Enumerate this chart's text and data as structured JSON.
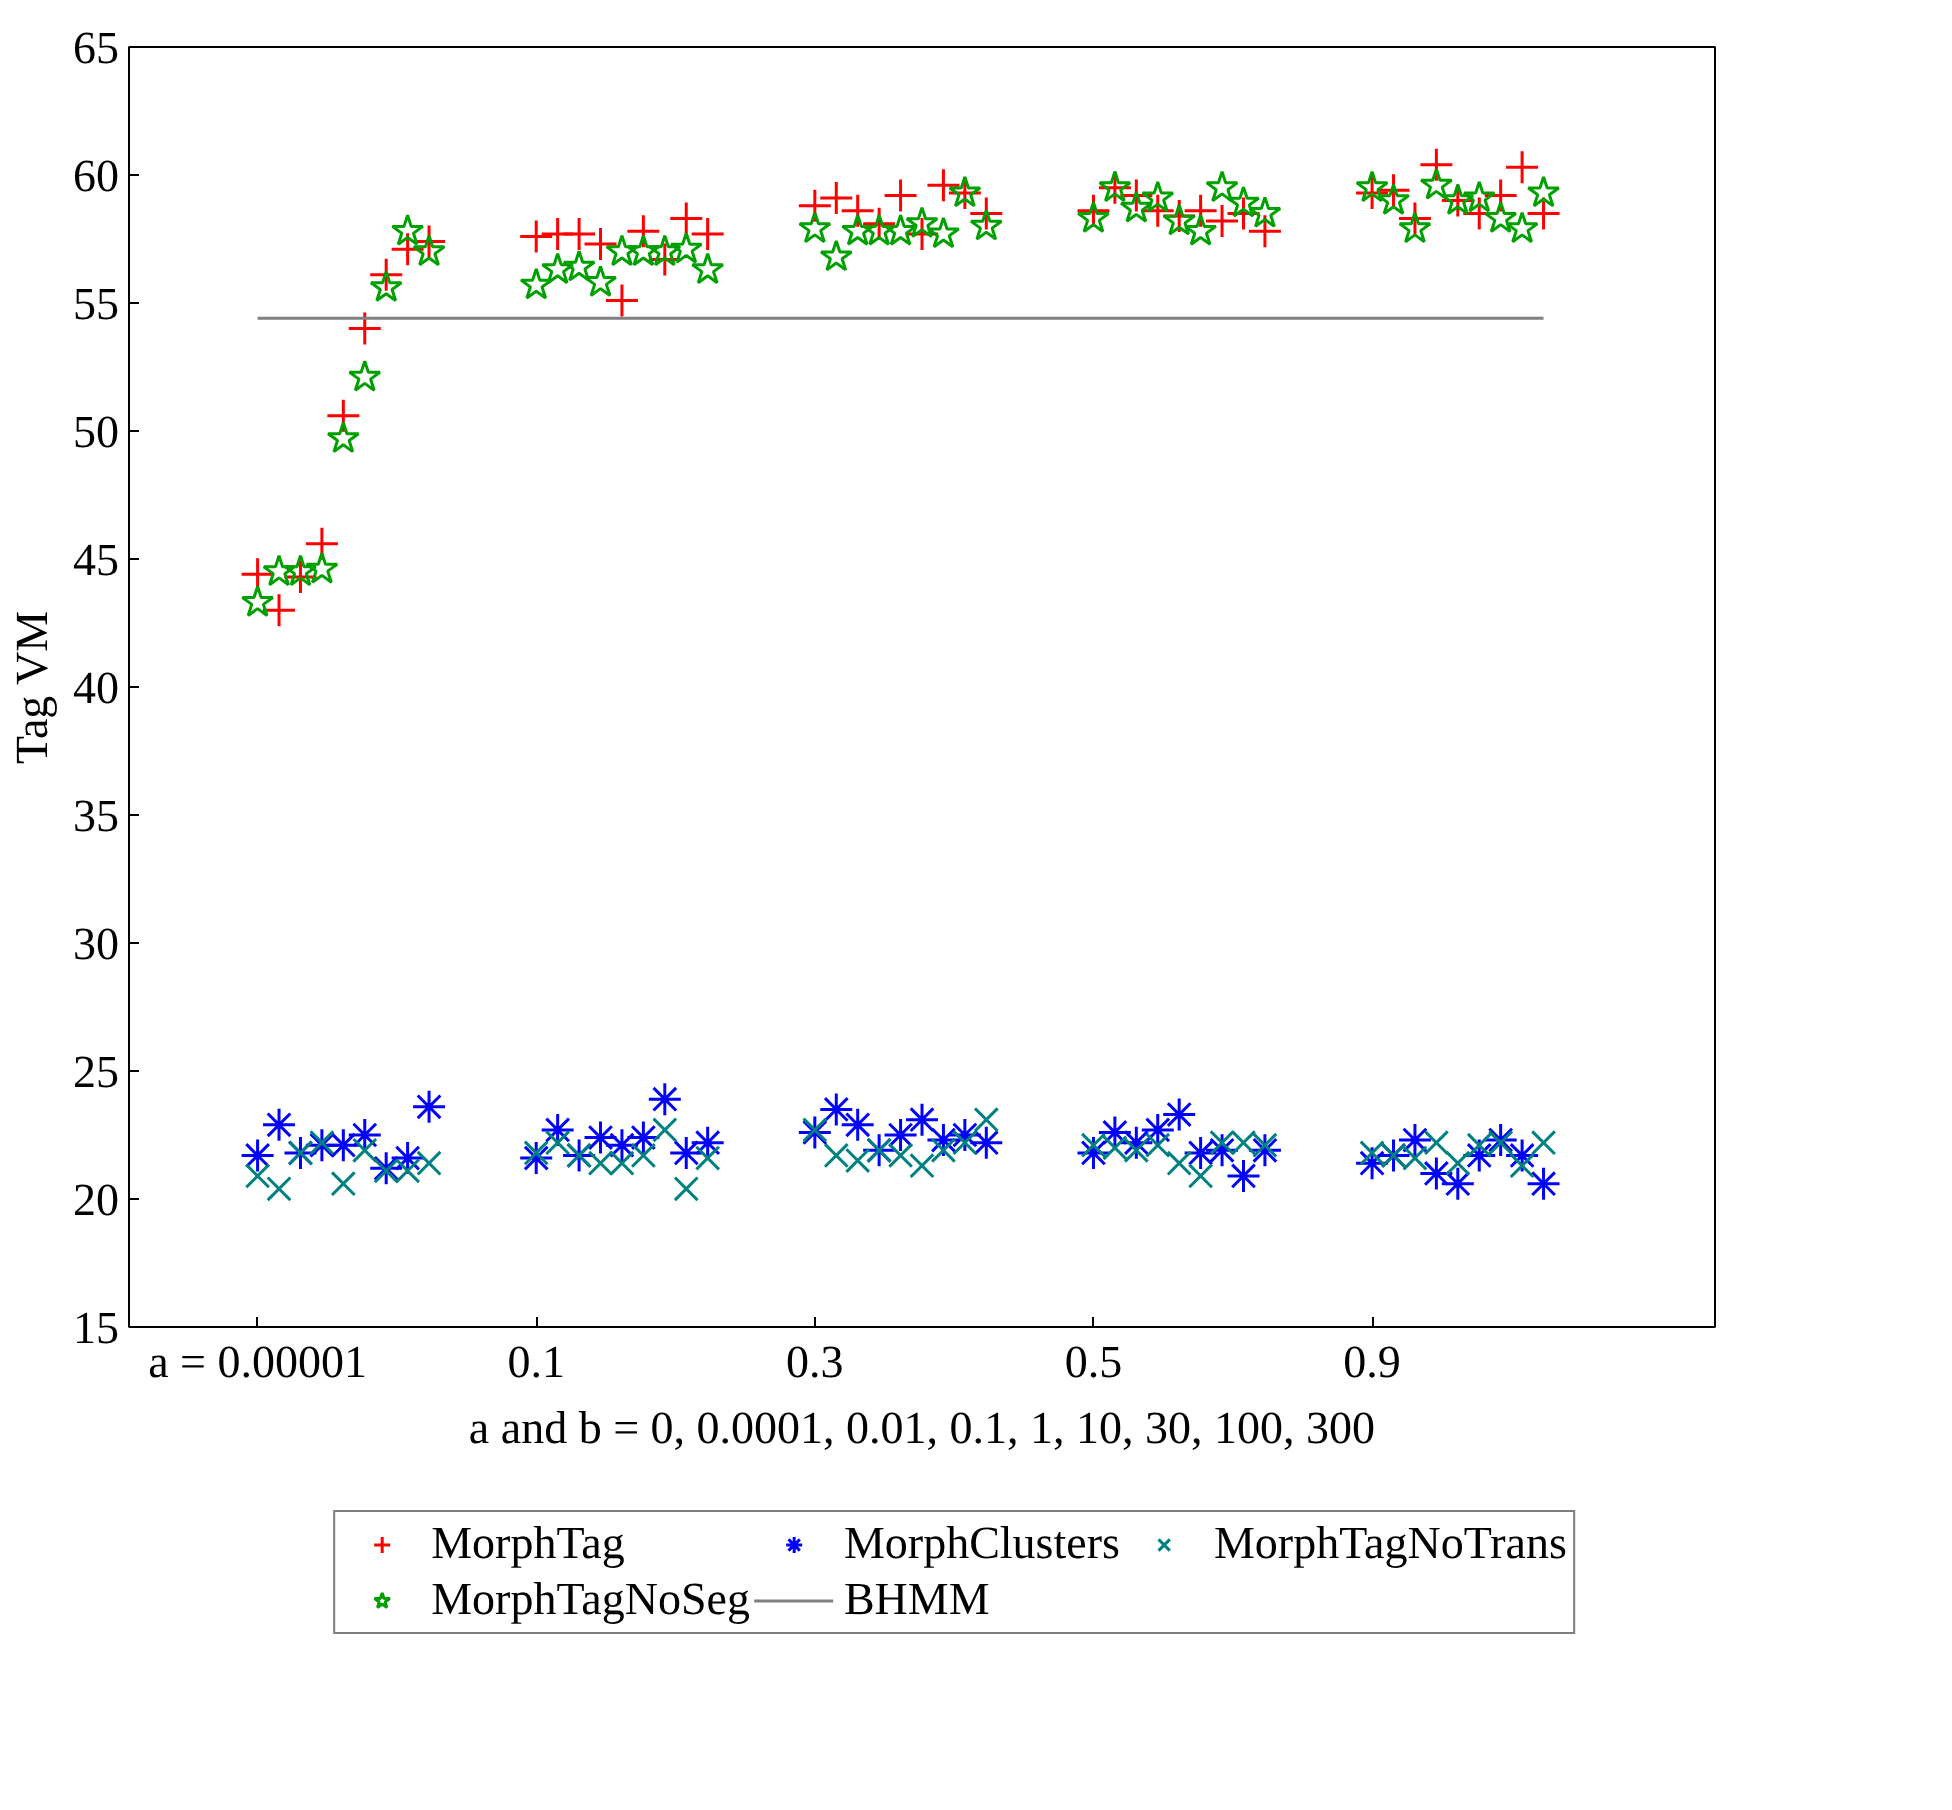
{
  "chart_data": {
    "type": "scatter",
    "ylabel": "Tag VM",
    "xlabel": "a and b = 0, 0.0001, 0.01, 0.1, 1, 10, 30, 100, 300",
    "categories": [
      "a = 0.00001",
      null,
      null,
      null,
      null,
      null,
      null,
      null,
      null,
      null,
      null,
      null,
      null,
      "0.1",
      null,
      null,
      null,
      null,
      null,
      null,
      null,
      null,
      null,
      null,
      null,
      null,
      "0.3",
      null,
      null,
      null,
      null,
      null,
      null,
      null,
      null,
      null,
      null,
      null,
      null,
      "0.5",
      null,
      null,
      null,
      null,
      null,
      null,
      null,
      null,
      null,
      null,
      null,
      null,
      "0.9",
      null,
      null,
      null,
      null,
      null,
      null,
      null,
      null
    ],
    "ylim": [
      15,
      65
    ],
    "yticks": [
      15,
      20,
      25,
      30,
      35,
      40,
      45,
      50,
      55,
      60,
      65
    ],
    "grid": false,
    "legend": "bottom",
    "series": [
      {
        "name": "MorphTag",
        "color": "#ff0000",
        "marker": "cross",
        "values": [
          44.4,
          43.0,
          44.3,
          45.6,
          50.6,
          54.0,
          56.1,
          57.1,
          57.4,
          null,
          null,
          null,
          null,
          57.6,
          57.7,
          57.7,
          57.3,
          55.1,
          57.8,
          56.7,
          58.3,
          57.7,
          null,
          null,
          null,
          null,
          58.8,
          59.1,
          58.6,
          58.1,
          59.2,
          57.7,
          59.6,
          59.3,
          58.5,
          null,
          null,
          null,
          null,
          58.6,
          59.5,
          59.2,
          58.6,
          58.4,
          58.6,
          58.2,
          58.5,
          57.8,
          null,
          null,
          null,
          null,
          59.3,
          59.4,
          58.3,
          60.4,
          59.0,
          58.5,
          59.2,
          60.3,
          58.5
        ]
      },
      {
        "name": "MorphClusters",
        "color": "#0000ff",
        "values": [
          21.7,
          22.9,
          21.8,
          22.1,
          22.1,
          22.5,
          21.2,
          21.6,
          23.6,
          null,
          null,
          null,
          null,
          21.6,
          22.7,
          21.7,
          22.4,
          22.1,
          22.4,
          23.9,
          21.8,
          22.2,
          null,
          null,
          null,
          null,
          22.6,
          23.5,
          22.9,
          21.9,
          22.5,
          23.1,
          22.3,
          22.5,
          22.2,
          null,
          null,
          null,
          null,
          21.8,
          22.6,
          22.2,
          22.7,
          23.3,
          21.8,
          21.9,
          20.9,
          21.9,
          null,
          null,
          null,
          null,
          21.4,
          21.7,
          22.3,
          21.0,
          20.6,
          21.7,
          22.3,
          21.7,
          20.6
        ]
      },
      {
        "name": "MorphTagNoTrans",
        "color": "#008080",
        "values": [
          20.9,
          20.4,
          21.8,
          22.2,
          20.6,
          21.9,
          21.1,
          21.1,
          21.4,
          null,
          null,
          null,
          null,
          21.8,
          22.2,
          21.7,
          21.4,
          21.4,
          21.7,
          22.7,
          20.4,
          21.6,
          null,
          null,
          null,
          null,
          22.7,
          21.7,
          21.5,
          21.9,
          21.7,
          21.3,
          21.9,
          22.2,
          23.1,
          null,
          null,
          null,
          null,
          22.1,
          22.0,
          21.9,
          22.1,
          21.4,
          20.9,
          22.2,
          22.2,
          22.1,
          null,
          null,
          null,
          null,
          21.8,
          21.7,
          21.6,
          22.2,
          21.4,
          22.1,
          22.2,
          21.3,
          22.2
        ]
      },
      {
        "name": "MorphTagNoSeg",
        "color": "#00a000",
        "marker": "star",
        "values": [
          43.3,
          44.5,
          44.5,
          44.6,
          49.7,
          52.1,
          55.6,
          57.8,
          57.0,
          null,
          null,
          null,
          null,
          55.7,
          56.3,
          56.4,
          55.8,
          57.0,
          57.0,
          57.0,
          57.1,
          56.3,
          null,
          null,
          null,
          null,
          57.9,
          56.8,
          57.8,
          57.8,
          57.8,
          58.1,
          57.7,
          59.3,
          58.0,
          null,
          null,
          null,
          null,
          58.3,
          59.5,
          58.7,
          59.1,
          58.2,
          57.8,
          59.5,
          58.9,
          58.5,
          null,
          null,
          null,
          null,
          59.5,
          59.0,
          57.9,
          59.6,
          59.0,
          59.1,
          58.3,
          57.9,
          59.3
        ]
      },
      {
        "name": "BHMM",
        "color": "#808080",
        "type": "line",
        "values": [
          54.4,
          54.4,
          54.4,
          54.4,
          54.4,
          54.4,
          54.4,
          54.4,
          54.4,
          54.4,
          54.4,
          54.4,
          54.4,
          54.4,
          54.4,
          54.4,
          54.4,
          54.4,
          54.4,
          54.4,
          54.4,
          54.4,
          54.4,
          54.4,
          54.4,
          54.4,
          54.4,
          54.4,
          54.4,
          54.4,
          54.4,
          54.4,
          54.4,
          54.4,
          54.4,
          54.4,
          54.4,
          54.4,
          54.4,
          54.4,
          54.4,
          54.4,
          54.4,
          54.4,
          54.4,
          54.4,
          54.4,
          54.4,
          54.4,
          54.4,
          54.4,
          54.4,
          54.4,
          54.4,
          54.4,
          54.4,
          54.4,
          54.4,
          54.4,
          54.4,
          54.4
        ]
      }
    ]
  }
}
